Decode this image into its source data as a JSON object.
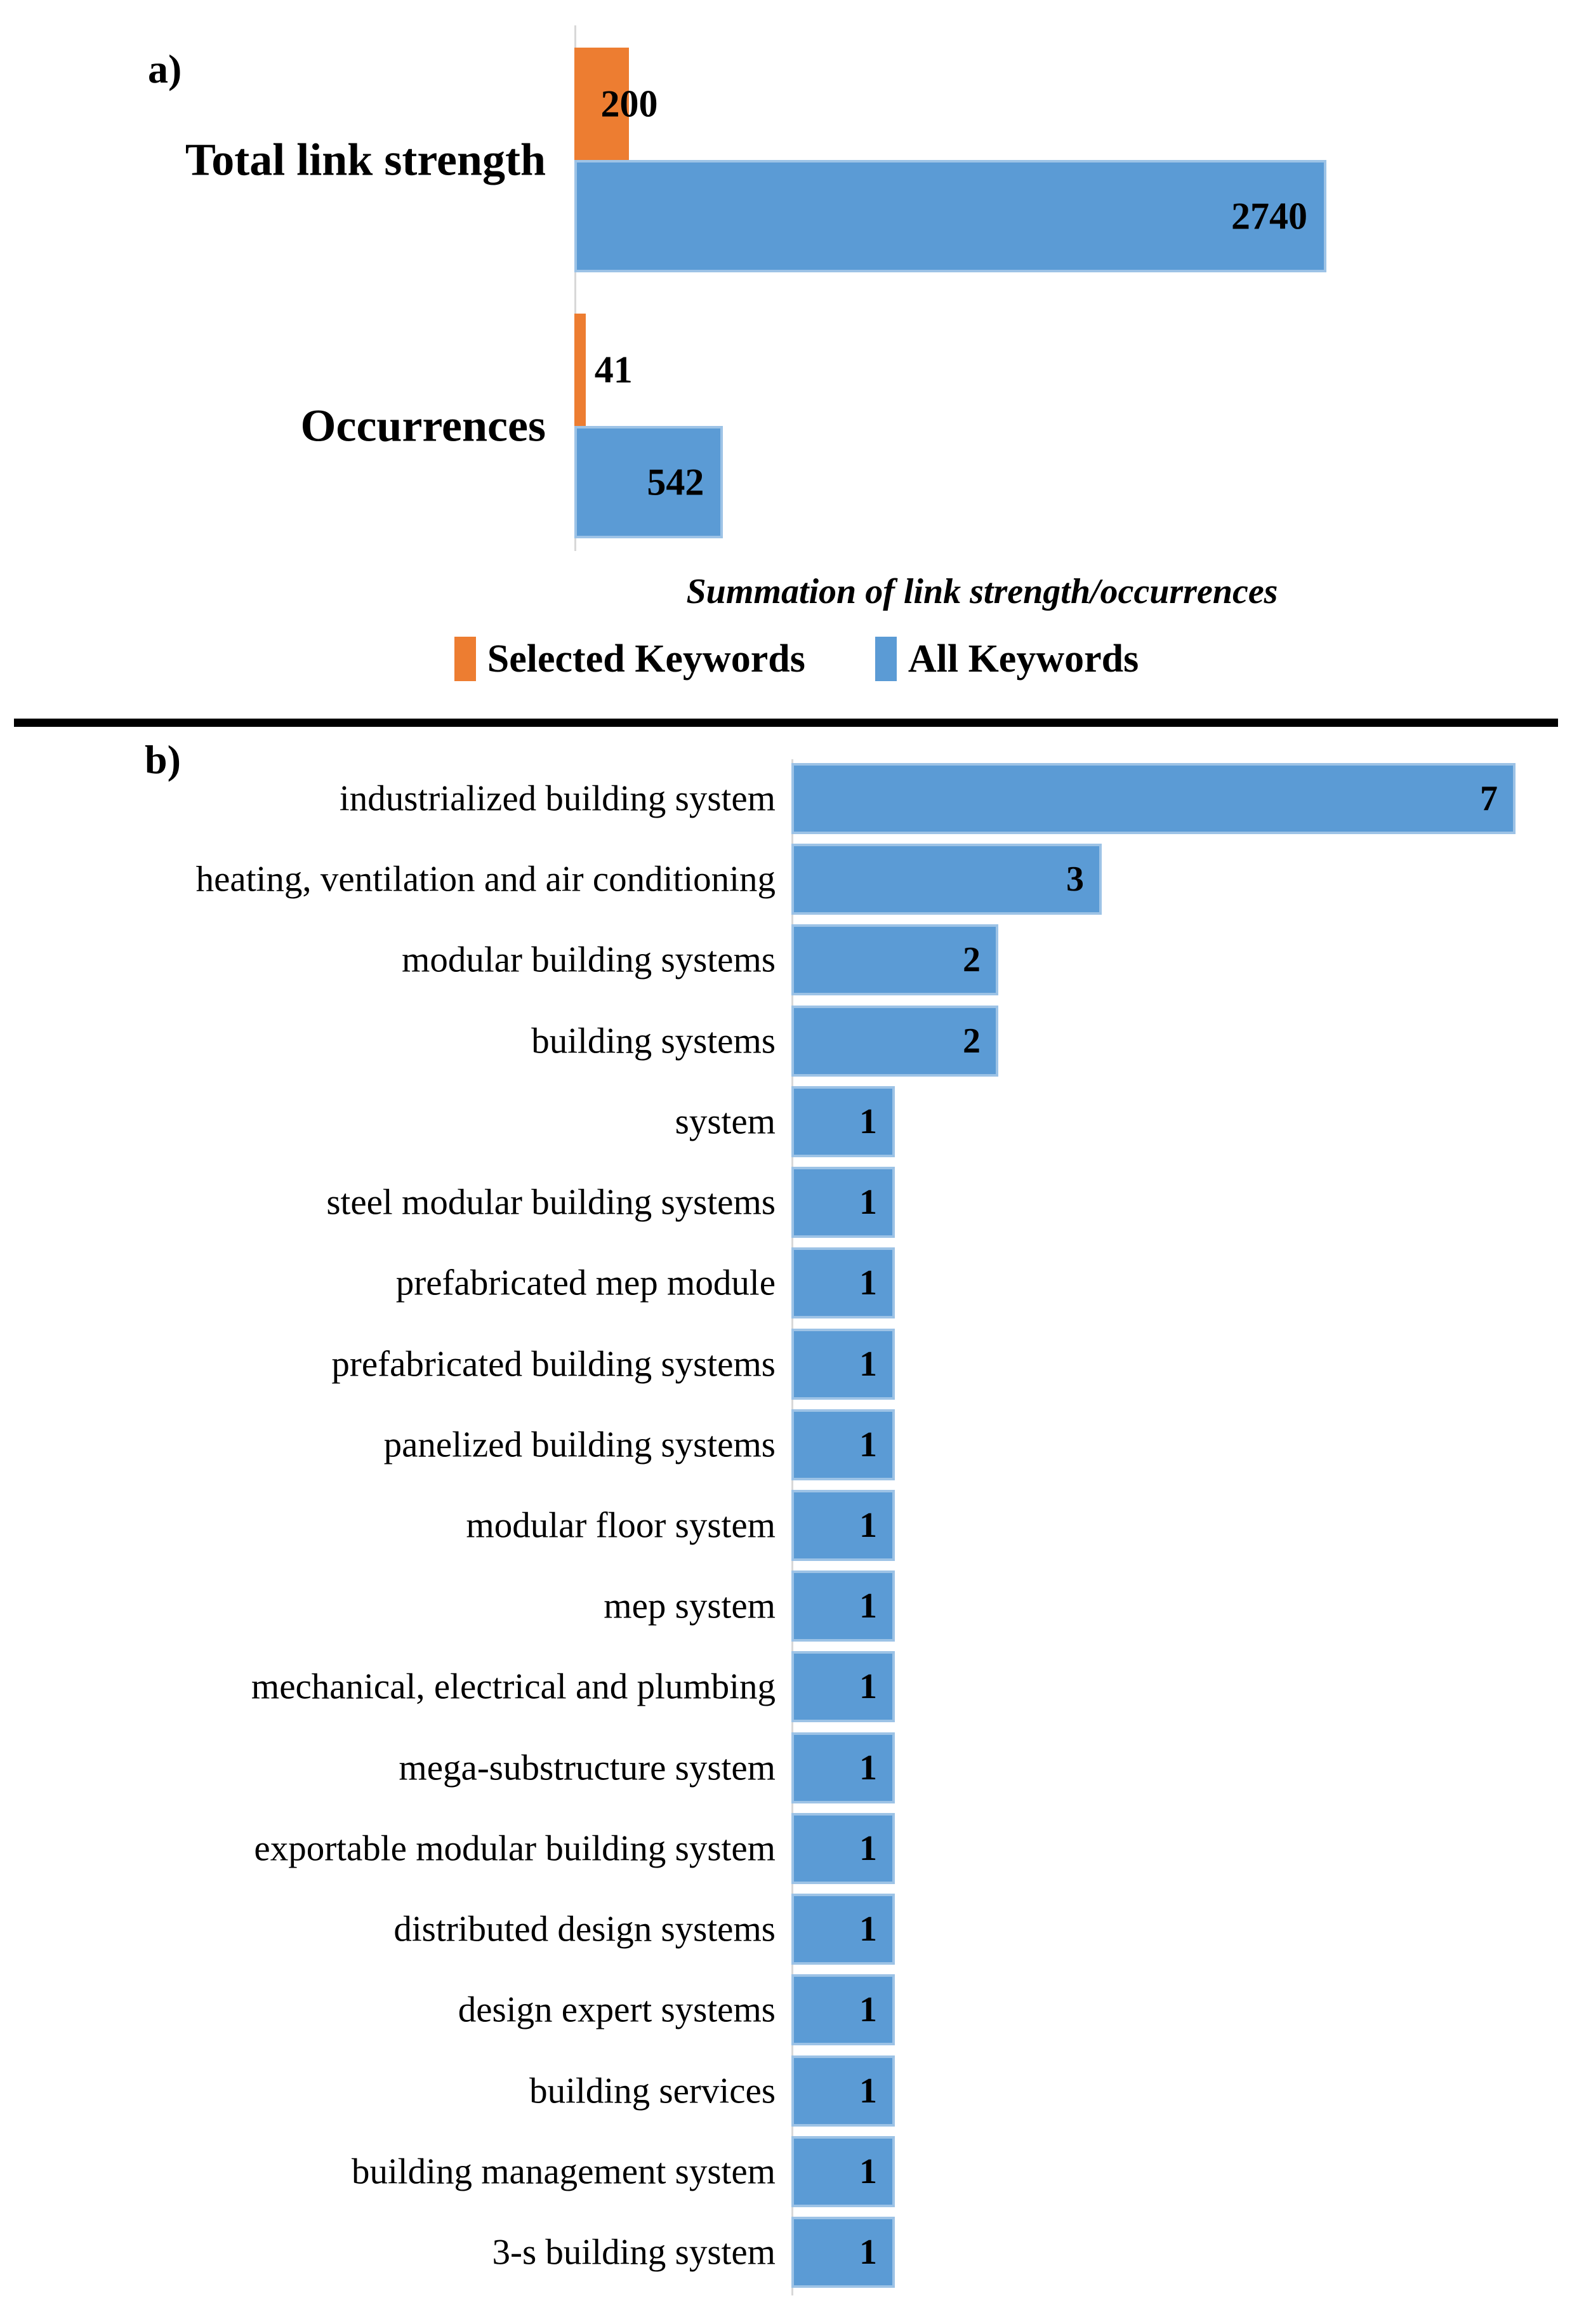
{
  "figure": {
    "panel_a_label": "a)",
    "panel_b_label": "b)"
  },
  "colors": {
    "selected_keywords": "#ED7D31",
    "all_keywords": "#5B9BD5",
    "axis_line": "#D8D8D8",
    "divider": "#000000"
  },
  "chart_data": [
    {
      "type": "bar",
      "orientation": "horizontal",
      "panel": "a",
      "title": "",
      "xlabel": "Summation of link strength/occurrences",
      "categories": [
        "Total link strength",
        "Occurrences"
      ],
      "series": [
        {
          "name": "Selected Keywords",
          "color": "#ED7D31",
          "values": [
            200,
            41
          ]
        },
        {
          "name": "All Keywords",
          "color": "#5B9BD5",
          "values": [
            2740,
            542
          ]
        }
      ],
      "xlim": [
        0,
        2740
      ],
      "grid": false,
      "legend_position": "bottom",
      "data_labels": true
    },
    {
      "type": "bar",
      "orientation": "horizontal",
      "panel": "b",
      "title": "",
      "xlabel": "",
      "categories": [
        "industrialized building system",
        "heating, ventilation and air conditioning",
        "modular building systems",
        "building systems",
        "system",
        "steel modular building systems",
        "prefabricated mep module",
        "prefabricated building systems",
        "panelized building systems",
        "modular floor system",
        "mep system",
        "mechanical, electrical and plumbing",
        "mega-substructure system",
        "exportable modular building system",
        "distributed design systems",
        "design expert systems",
        "building services",
        "building management system",
        "3-s building system"
      ],
      "values": [
        7,
        3,
        2,
        2,
        1,
        1,
        1,
        1,
        1,
        1,
        1,
        1,
        1,
        1,
        1,
        1,
        1,
        1,
        1
      ],
      "series_color": "#5B9BD5",
      "xlim": [
        0,
        7
      ],
      "grid": false,
      "data_labels": true
    }
  ]
}
